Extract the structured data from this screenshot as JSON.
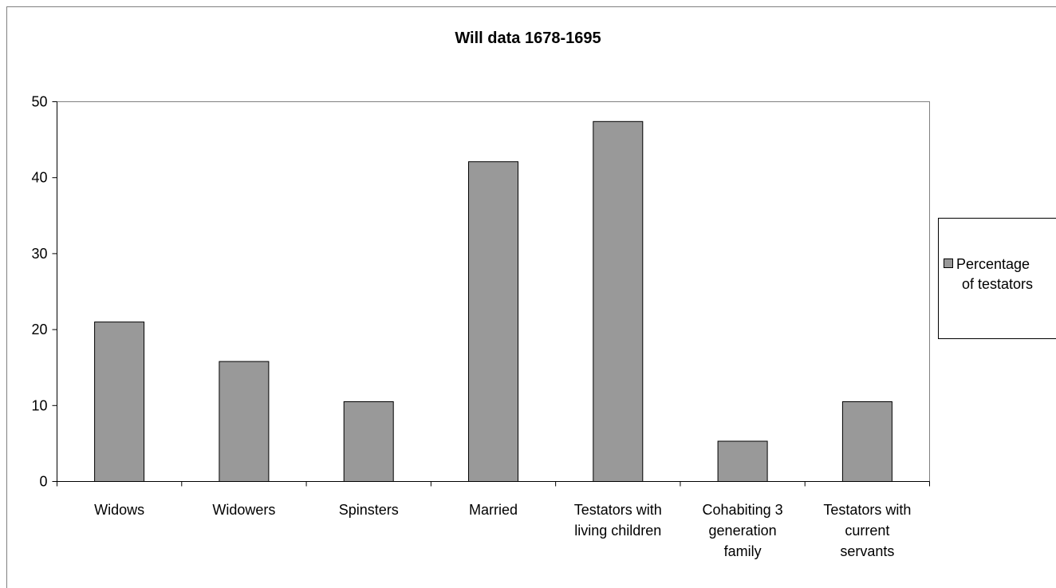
{
  "chart_data": {
    "type": "bar",
    "title": "Will data 1678-1695",
    "xlabel": "",
    "ylabel": "",
    "ylim": [
      0,
      50
    ],
    "yticks": [
      0,
      10,
      20,
      30,
      40,
      50
    ],
    "grid": false,
    "legend_position": "right",
    "categories": [
      [
        "Widows"
      ],
      [
        "Widowers"
      ],
      [
        "Spinsters"
      ],
      [
        "Married"
      ],
      [
        "Testators with",
        "living children"
      ],
      [
        "Cohabiting 3",
        "generation",
        "family"
      ],
      [
        "Testators with",
        "current",
        "servants"
      ]
    ],
    "series": [
      {
        "name": "Percentage of testators",
        "legend_lines": [
          "Percentage",
          "of testators"
        ],
        "values": [
          21.0,
          15.8,
          10.5,
          42.1,
          47.4,
          5.3,
          10.5
        ]
      }
    ],
    "colors": {
      "bar_fill": "#999999",
      "bar_stroke": "#000000",
      "frame": "#808080",
      "axis": "#000000"
    }
  }
}
